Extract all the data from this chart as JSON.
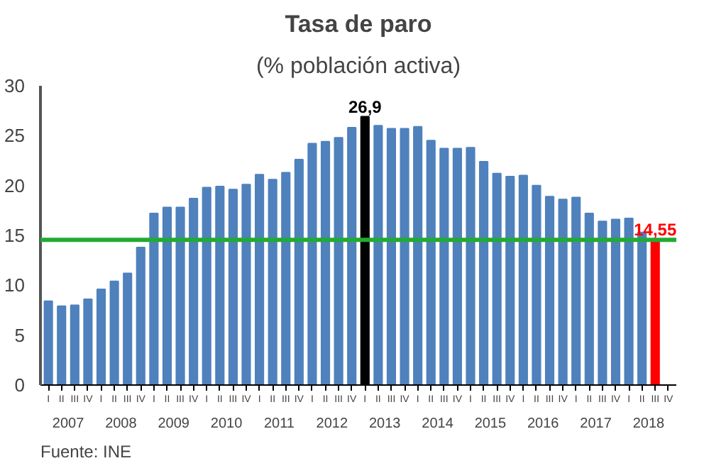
{
  "chart_data": {
    "type": "bar",
    "title": "Tasa de paro",
    "subtitle": "(% población activa)",
    "categories": [
      "I",
      "II",
      "III",
      "IV",
      "I",
      "II",
      "III",
      "IV",
      "I",
      "II",
      "III",
      "IV",
      "I",
      "II",
      "III",
      "IV",
      "I",
      "II",
      "III",
      "IV",
      "I",
      "II",
      "III",
      "IV",
      "I",
      "II",
      "III",
      "IV",
      "I",
      "II",
      "III",
      "IV",
      "I",
      "II",
      "III",
      "IV",
      "I",
      "II",
      "III",
      "IV",
      "I",
      "II",
      "III",
      "IV",
      "I",
      "II",
      "III",
      "IV"
    ],
    "values": [
      8.4,
      7.9,
      8.0,
      8.6,
      9.6,
      10.4,
      11.2,
      13.8,
      17.2,
      17.8,
      17.8,
      18.7,
      19.8,
      19.9,
      19.6,
      20.1,
      21.1,
      20.6,
      21.3,
      22.6,
      24.2,
      24.4,
      24.8,
      25.8,
      26.9,
      26.0,
      25.7,
      25.7,
      25.9,
      24.5,
      23.7,
      23.7,
      23.8,
      22.4,
      21.2,
      20.9,
      21.0,
      20.0,
      18.9,
      18.6,
      18.8,
      17.2,
      16.4,
      16.6,
      16.7,
      15.3,
      14.55,
      null
    ],
    "colors": [
      "#4f81bd",
      "#4f81bd",
      "#4f81bd",
      "#4f81bd",
      "#4f81bd",
      "#4f81bd",
      "#4f81bd",
      "#4f81bd",
      "#4f81bd",
      "#4f81bd",
      "#4f81bd",
      "#4f81bd",
      "#4f81bd",
      "#4f81bd",
      "#4f81bd",
      "#4f81bd",
      "#4f81bd",
      "#4f81bd",
      "#4f81bd",
      "#4f81bd",
      "#4f81bd",
      "#4f81bd",
      "#4f81bd",
      "#4f81bd",
      "#000000",
      "#4f81bd",
      "#4f81bd",
      "#4f81bd",
      "#4f81bd",
      "#4f81bd",
      "#4f81bd",
      "#4f81bd",
      "#4f81bd",
      "#4f81bd",
      "#4f81bd",
      "#4f81bd",
      "#4f81bd",
      "#4f81bd",
      "#4f81bd",
      "#4f81bd",
      "#4f81bd",
      "#4f81bd",
      "#4f81bd",
      "#4f81bd",
      "#4f81bd",
      "#4f81bd",
      "#ff0000",
      "#4f81bd"
    ],
    "value_labels": [
      null,
      null,
      null,
      null,
      null,
      null,
      null,
      null,
      null,
      null,
      null,
      null,
      null,
      null,
      null,
      null,
      null,
      null,
      null,
      null,
      null,
      null,
      null,
      null,
      "26,9",
      null,
      null,
      null,
      null,
      null,
      null,
      null,
      null,
      null,
      null,
      null,
      null,
      null,
      null,
      null,
      null,
      null,
      null,
      null,
      null,
      null,
      "14,55",
      null
    ],
    "ylim": [
      0,
      30
    ],
    "yticks": [
      0,
      5,
      10,
      15,
      20,
      25,
      30
    ],
    "grid": false,
    "ref_lines": [
      {
        "axis": "y",
        "value": 14.55,
        "color": "#22aa33"
      }
    ],
    "annotations": [
      "2007",
      "2008",
      "2009",
      "2010",
      "2011",
      "2012",
      "2013",
      "2014",
      "2015",
      "2016",
      "2017",
      "2018",
      "Fuente: INE"
    ]
  }
}
